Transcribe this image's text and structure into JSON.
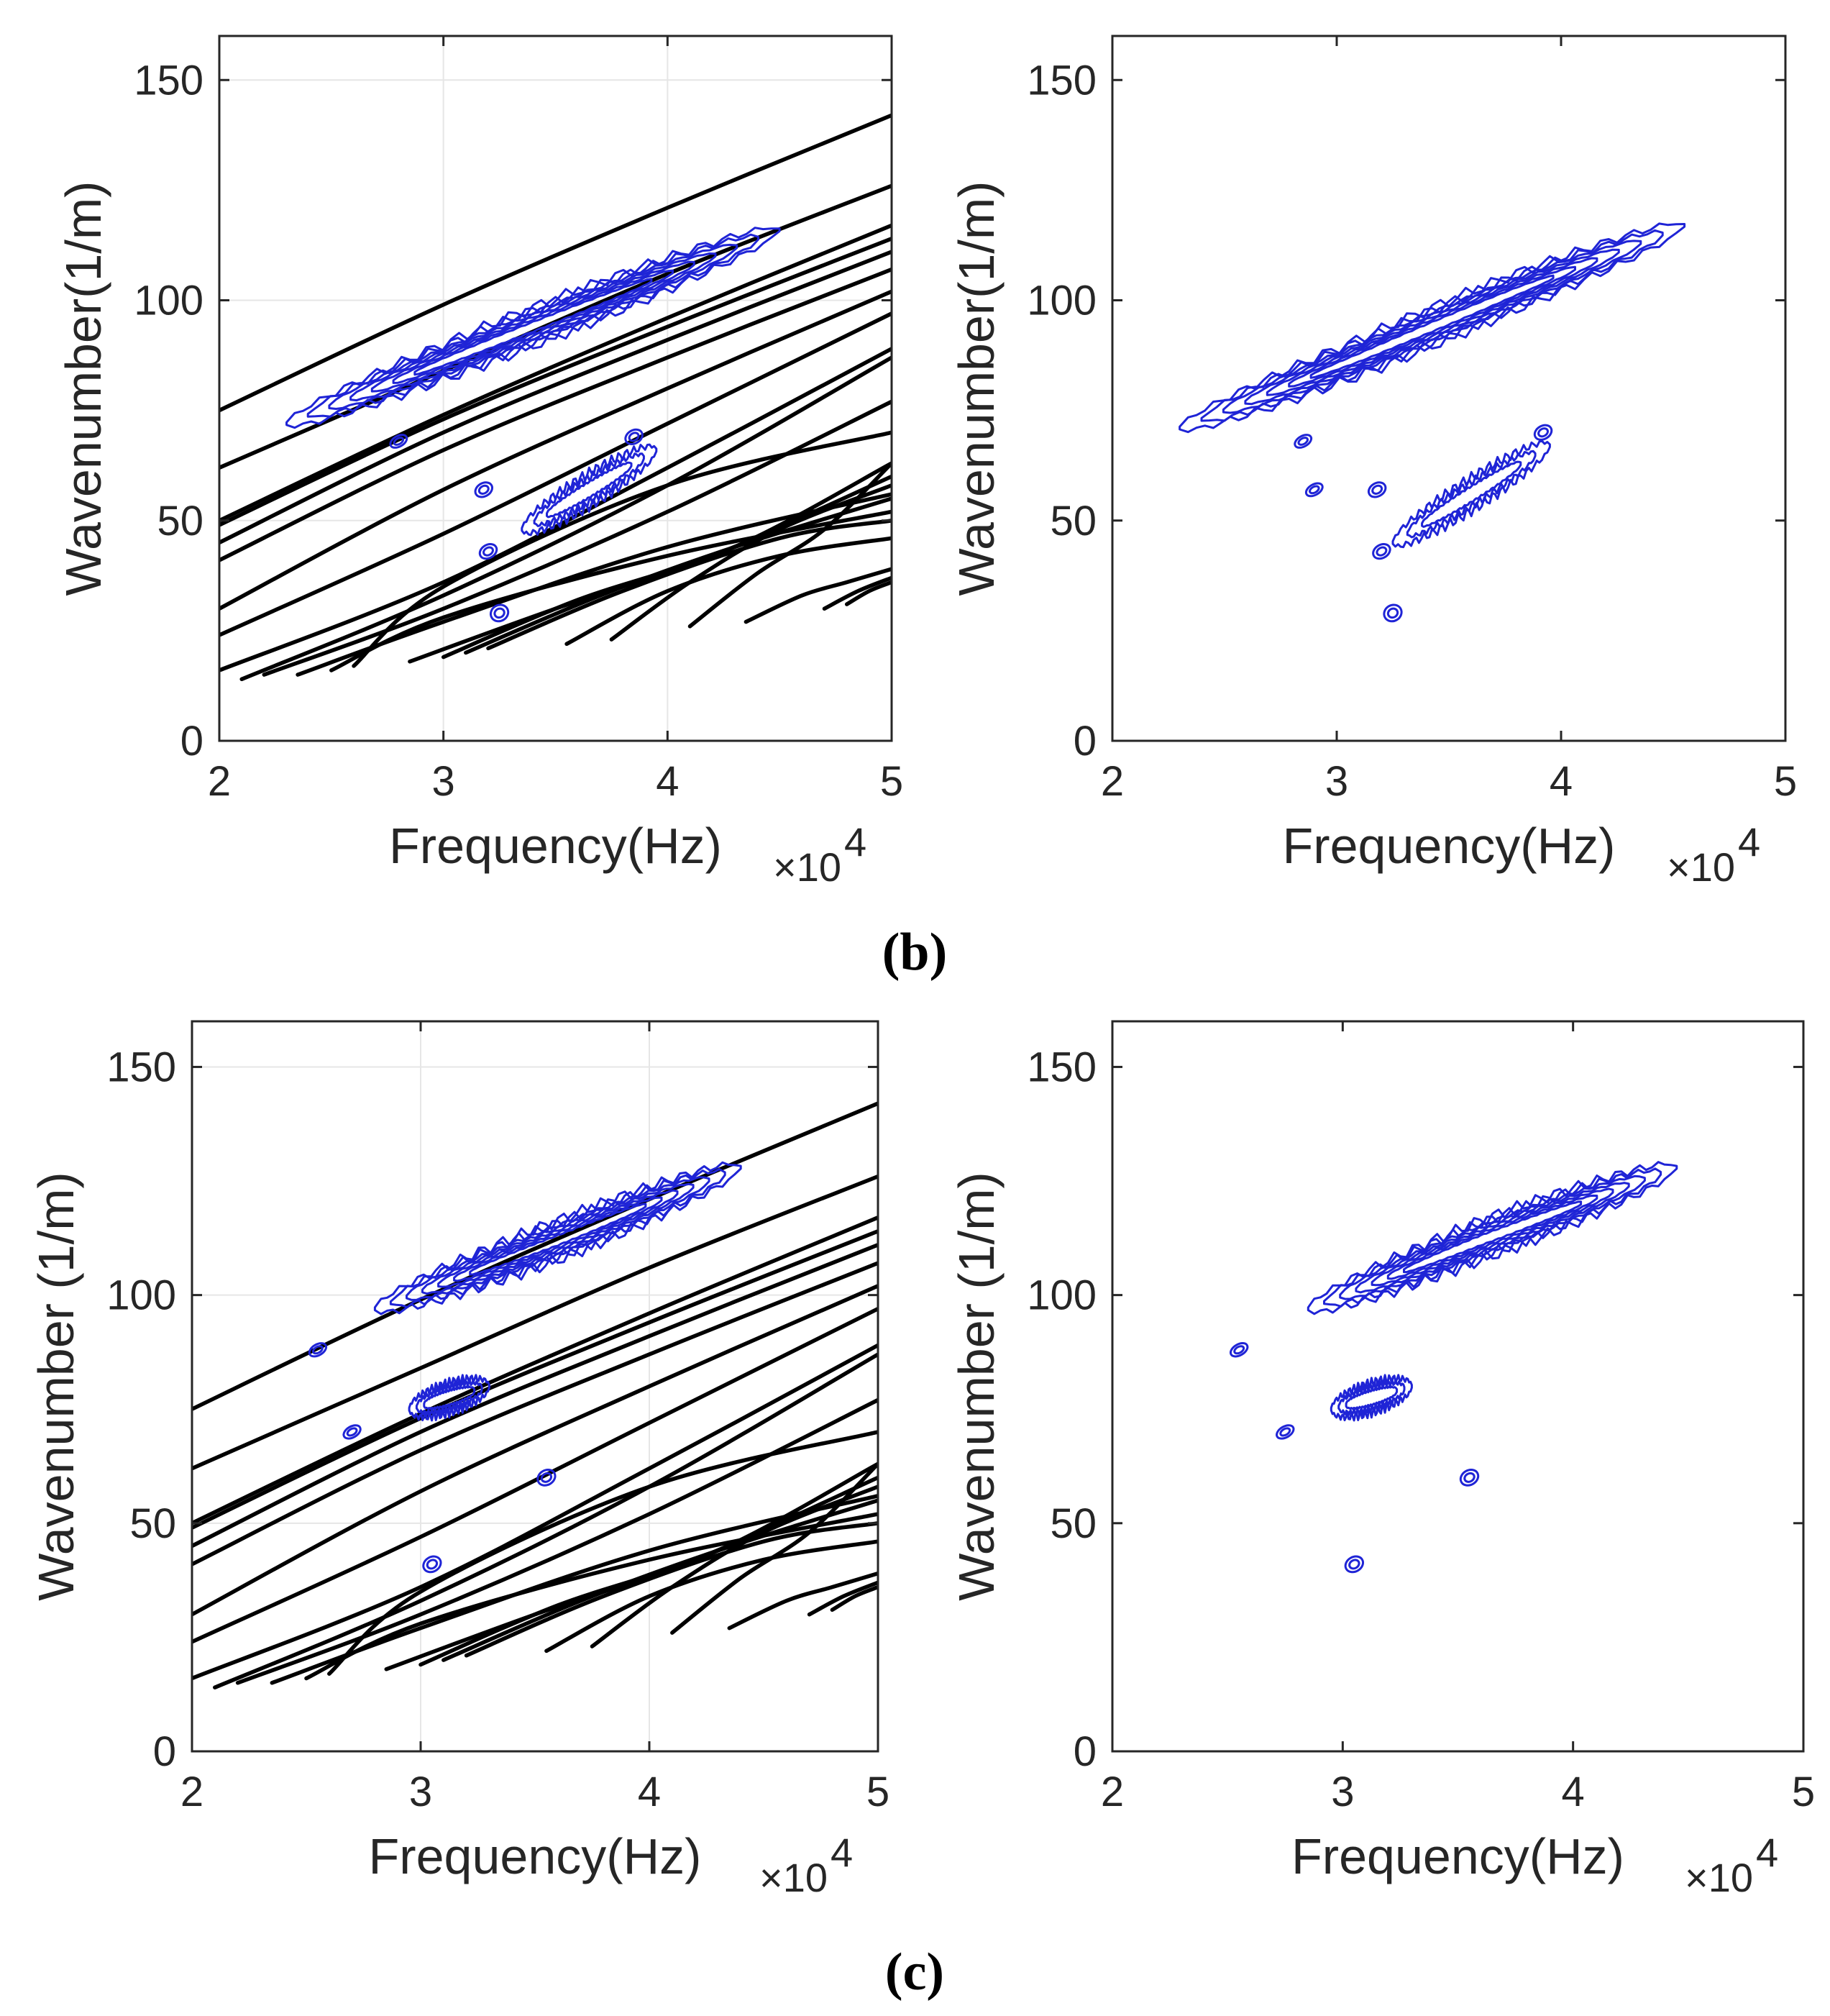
{
  "panel_labels": {
    "b": "(b)",
    "c": "(c)"
  },
  "colors": {
    "dispersion": "#000000",
    "contour": "#1f24d6",
    "grid": "#e6e6e6",
    "axis": "#262626"
  },
  "chart_data": [
    {
      "type": "line",
      "subtype": "dispersion-curves-with-contour",
      "panel": "b-left",
      "xlabel": "Frequency(Hz)",
      "x_multiplier": "×10",
      "x_exponent": "4",
      "ylabel": "Wavenumber(1/m)",
      "xlim": [
        2,
        5
      ],
      "ylim": [
        0,
        160
      ],
      "xticks": [
        2,
        3,
        4,
        5
      ],
      "yticks": [
        0,
        50,
        100,
        150
      ],
      "grid": true,
      "show_curves": true,
      "contour_islands": [
        {
          "x": [
            2.3,
            3.1,
            3.8,
            4.5
          ],
          "y": [
            72,
            88,
            102,
            116
          ],
          "w": 4
        },
        {
          "x": [
            3.35,
            3.95
          ],
          "y": [
            48,
            66
          ],
          "w": 3.5
        },
        {
          "x": [
            2.8
          ],
          "y": [
            68
          ],
          "w": 1.2
        },
        {
          "x": [
            3.18
          ],
          "y": [
            57
          ],
          "w": 1.5
        },
        {
          "x": [
            3.2
          ],
          "y": [
            43
          ],
          "w": 1.5
        },
        {
          "x": [
            3.25
          ],
          "y": [
            29
          ],
          "w": 1.8
        },
        {
          "x": [
            3.85
          ],
          "y": [
            69
          ],
          "w": 1.5
        }
      ]
    },
    {
      "type": "contour",
      "panel": "b-right",
      "xlabel": "Frequency(Hz)",
      "x_multiplier": "×10",
      "x_exponent": "4",
      "ylabel": "Wavenumber(1/m)",
      "xlim": [
        2,
        5
      ],
      "ylim": [
        0,
        160
      ],
      "xticks": [
        2,
        3,
        4,
        5
      ],
      "yticks": [
        0,
        50,
        100,
        150
      ],
      "grid": false,
      "show_curves": false,
      "contour_islands": [
        {
          "x": [
            2.3,
            3.1,
            3.8,
            4.55
          ],
          "y": [
            71,
            87,
            102,
            117
          ],
          "w": 4
        },
        {
          "x": [
            3.25,
            3.95
          ],
          "y": [
            45,
            67
          ],
          "w": 3.5
        },
        {
          "x": [
            2.85
          ],
          "y": [
            68
          ],
          "w": 1.2
        },
        {
          "x": [
            2.9
          ],
          "y": [
            57
          ],
          "w": 1.2
        },
        {
          "x": [
            3.18
          ],
          "y": [
            57
          ],
          "w": 1.5
        },
        {
          "x": [
            3.2
          ],
          "y": [
            43
          ],
          "w": 1.5
        },
        {
          "x": [
            3.25
          ],
          "y": [
            29
          ],
          "w": 1.8
        },
        {
          "x": [
            3.92
          ],
          "y": [
            70
          ],
          "w": 1.5
        }
      ]
    },
    {
      "type": "line",
      "subtype": "dispersion-curves-with-contour",
      "panel": "c-left",
      "xlabel": "Frequency(Hz)",
      "x_multiplier": "×10",
      "x_exponent": "4",
      "ylabel": "Wavenumber (1/m)",
      "xlim": [
        2,
        5
      ],
      "ylim": [
        0,
        160
      ],
      "xticks": [
        2,
        3,
        4,
        5
      ],
      "yticks": [
        0,
        50,
        100,
        150
      ],
      "grid": true,
      "show_curves": true,
      "contour_islands": [
        {
          "x": [
            2.8,
            3.6,
            4.4
          ],
          "y": [
            97,
            112,
            128
          ],
          "w": 4
        },
        {
          "x": [
            2.95,
            3.3
          ],
          "y": [
            75,
            80
          ],
          "w": 3
        },
        {
          "x": [
            2.55
          ],
          "y": [
            88
          ],
          "w": 1.2
        },
        {
          "x": [
            2.7
          ],
          "y": [
            70
          ],
          "w": 1.2
        },
        {
          "x": [
            3.55
          ],
          "y": [
            60
          ],
          "w": 1.6
        },
        {
          "x": [
            3.05
          ],
          "y": [
            41
          ],
          "w": 1.6
        }
      ]
    },
    {
      "type": "contour",
      "panel": "c-right",
      "xlabel": "Frequency(Hz)",
      "x_multiplier": "×10",
      "x_exponent": "4",
      "ylabel": "Wavenumber (1/m)",
      "xlim": [
        2,
        5
      ],
      "ylim": [
        0,
        160
      ],
      "xticks": [
        2,
        3,
        4,
        5
      ],
      "yticks": [
        0,
        50,
        100,
        150
      ],
      "grid": false,
      "show_curves": false,
      "contour_islands": [
        {
          "x": [
            2.85,
            3.6,
            4.45
          ],
          "y": [
            97,
            112,
            128
          ],
          "w": 4
        },
        {
          "x": [
            2.95,
            3.3
          ],
          "y": [
            75,
            80
          ],
          "w": 3
        },
        {
          "x": [
            2.55
          ],
          "y": [
            88
          ],
          "w": 1.2
        },
        {
          "x": [
            2.75
          ],
          "y": [
            70
          ],
          "w": 1.2
        },
        {
          "x": [
            3.55
          ],
          "y": [
            60
          ],
          "w": 1.6
        },
        {
          "x": [
            3.05
          ],
          "y": [
            41
          ],
          "w": 1.6
        }
      ]
    }
  ],
  "dispersion_curves": [
    {
      "x": [
        2.0,
        3.0,
        4.0,
        5.0
      ],
      "y": [
        75,
        99,
        121,
        142
      ]
    },
    {
      "x": [
        2.0,
        3.0,
        4.0,
        5.0
      ],
      "y": [
        62,
        84,
        106,
        126
      ]
    },
    {
      "x": [
        2.0,
        3.0,
        4.0,
        5.0
      ],
      "y": [
        50,
        74,
        96,
        117
      ]
    },
    {
      "x": [
        2.0,
        3.0,
        4.0,
        5.0
      ],
      "y": [
        49,
        73,
        94,
        114
      ]
    },
    {
      "x": [
        2.0,
        3.0,
        4.0,
        5.0
      ],
      "y": [
        45,
        70,
        91,
        111
      ]
    },
    {
      "x": [
        2.0,
        3.0,
        4.0,
        5.0
      ],
      "y": [
        41,
        66,
        87,
        107
      ]
    },
    {
      "x": [
        2.0,
        3.0,
        4.0,
        5.0
      ],
      "y": [
        30,
        57,
        80,
        102
      ]
    },
    {
      "x": [
        2.0,
        3.0,
        4.0,
        5.0
      ],
      "y": [
        24,
        47,
        72,
        97
      ]
    },
    {
      "x": [
        2.0,
        3.0,
        4.0,
        5.0
      ],
      "y": [
        16,
        36,
        62,
        89
      ]
    },
    {
      "x": [
        2.1,
        3.0,
        4.0,
        5.0
      ],
      "y": [
        14,
        33,
        58,
        87
      ]
    },
    {
      "x": [
        2.2,
        3.0,
        4.0,
        5.0
      ],
      "y": [
        15,
        30,
        52,
        77
      ]
    },
    {
      "x": [
        2.35,
        3.0,
        4.0,
        5.0
      ],
      "y": [
        15,
        27,
        44,
        56
      ]
    },
    {
      "x": [
        2.5,
        3.0,
        4.0,
        5.0
      ],
      "y": [
        16,
        28,
        42,
        52
      ]
    },
    {
      "x": [
        2.6,
        3.0,
        4.0,
        5.0
      ],
      "y": [
        17,
        35,
        58,
        70
      ]
    },
    {
      "x": [
        2.85,
        3.5,
        4.2,
        5.0
      ],
      "y": [
        18,
        30,
        42,
        60
      ]
    },
    {
      "x": [
        3.0,
        3.6,
        4.3,
        5.0
      ],
      "y": [
        19,
        32,
        44,
        63
      ]
    },
    {
      "x": [
        3.1,
        3.7,
        4.3,
        5.0
      ],
      "y": [
        20,
        33,
        44,
        55
      ]
    },
    {
      "x": [
        3.2,
        3.8,
        4.5,
        5.0
      ],
      "y": [
        21,
        34,
        46,
        50
      ]
    },
    {
      "x": [
        3.55,
        4.0,
        4.5,
        5.0
      ],
      "y": [
        22,
        34,
        42,
        46
      ]
    },
    {
      "x": [
        3.75,
        4.1,
        4.5,
        5.0
      ],
      "y": [
        23,
        36,
        48,
        58
      ]
    },
    {
      "x": [
        4.1,
        4.4,
        4.7,
        5.0
      ],
      "y": [
        26,
        38,
        48,
        63
      ]
    },
    {
      "x": [
        4.35,
        4.6,
        4.8,
        5.0
      ],
      "y": [
        27,
        33,
        36,
        39
      ]
    },
    {
      "x": [
        4.7,
        4.85,
        5.0
      ],
      "y": [
        30,
        34,
        37
      ]
    },
    {
      "x": [
        4.8,
        4.9,
        5.0
      ],
      "y": [
        31,
        34,
        36
      ]
    }
  ]
}
